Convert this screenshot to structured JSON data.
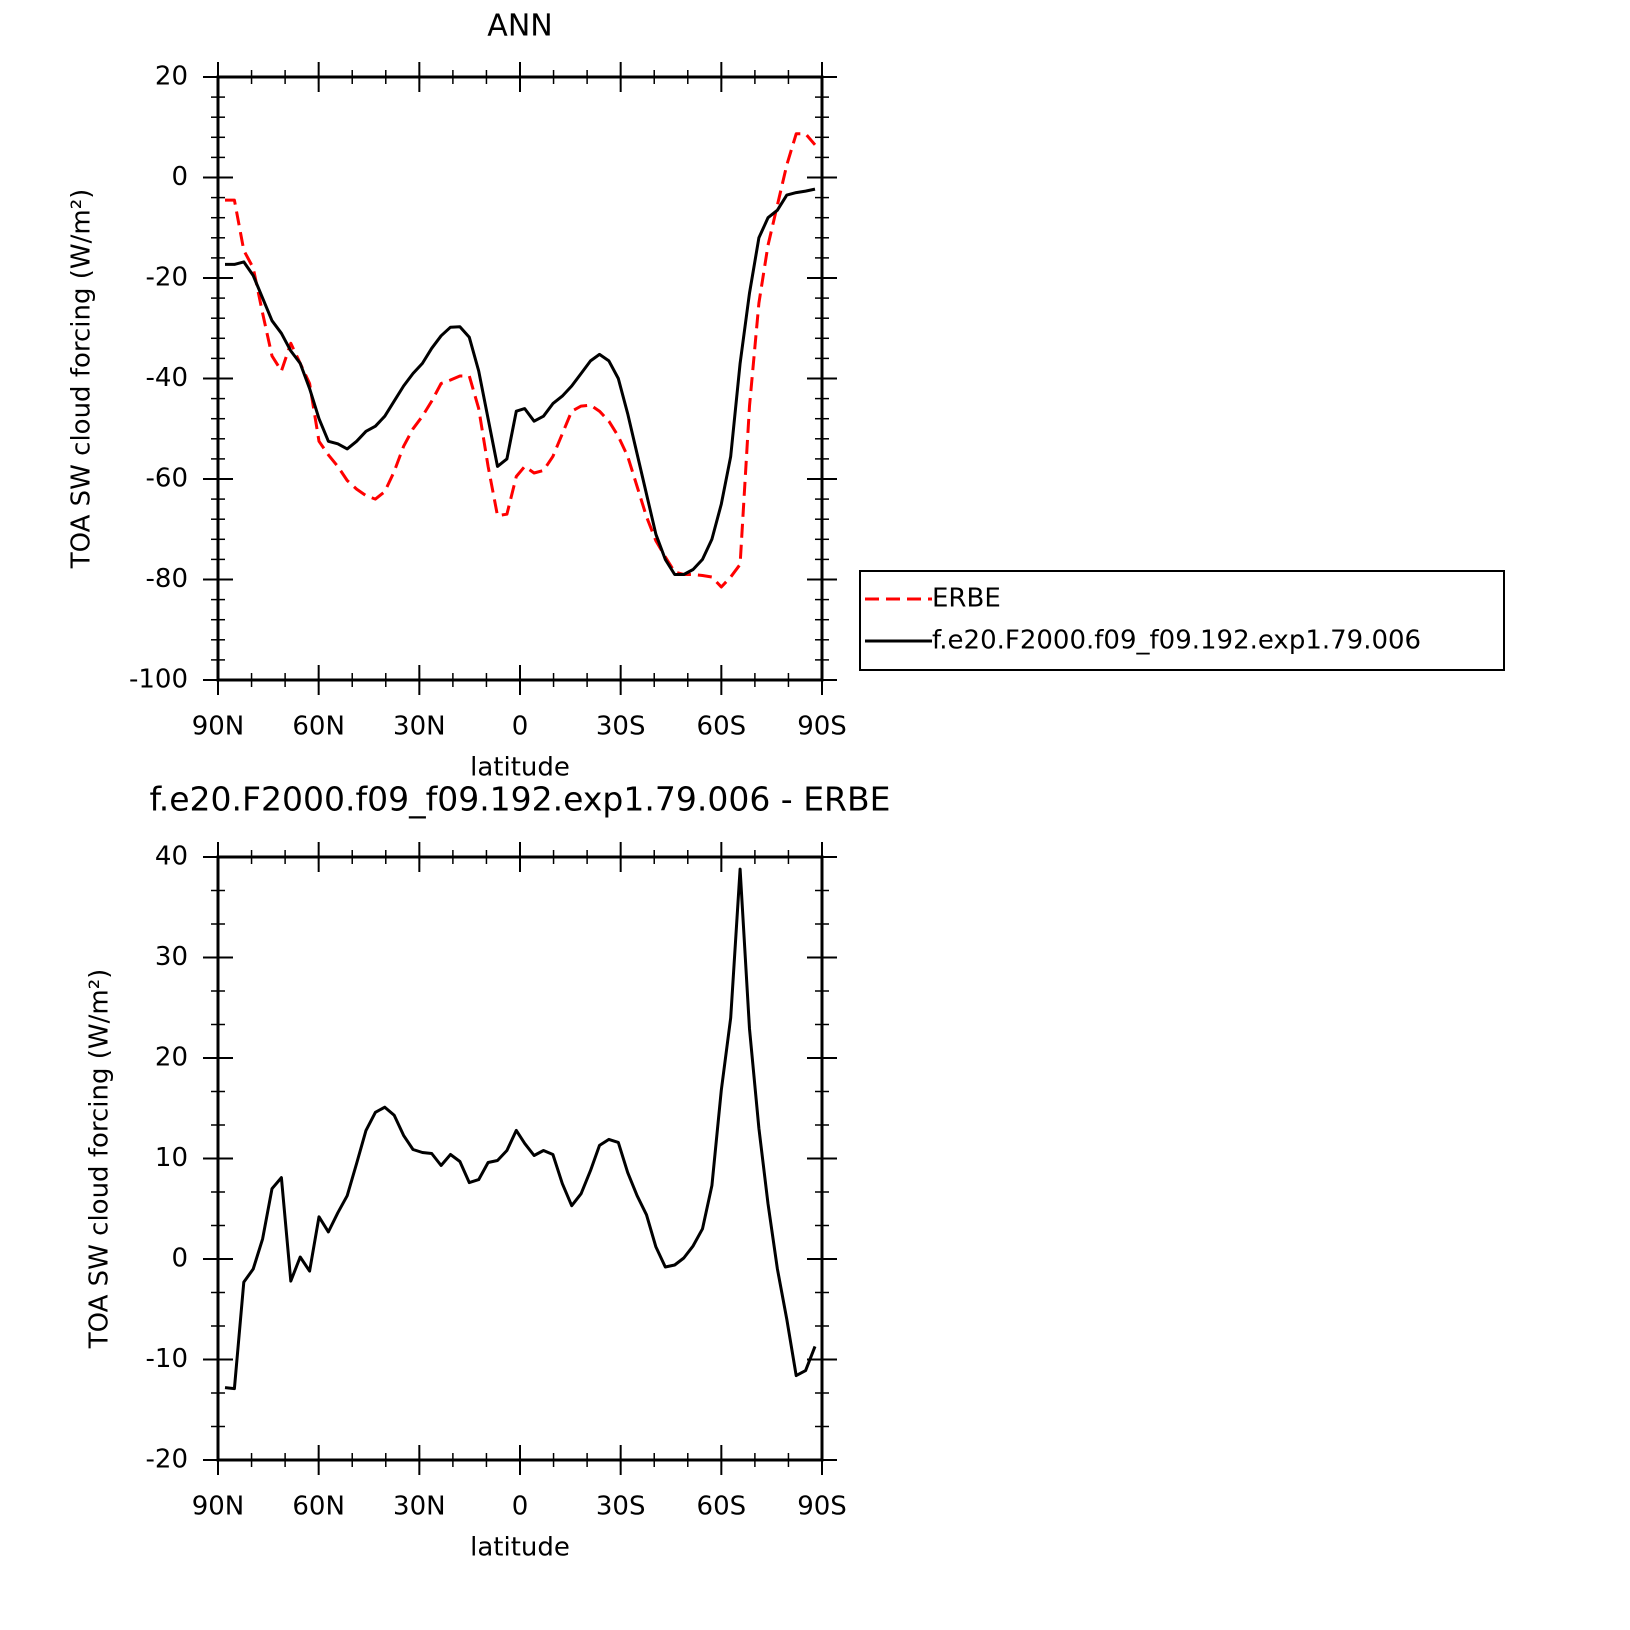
{
  "chart_data": [
    {
      "type": "line",
      "title": "ANN",
      "xlabel": "latitude",
      "ylabel": "TOA SW cloud forcing (W/m²)",
      "x": [
        87.9,
        85.1,
        82.3,
        79.5,
        76.7,
        73.9,
        71.1,
        68.3,
        65.5,
        62.7,
        59.9,
        57.1,
        54.3,
        51.5,
        48.7,
        45.9,
        43.1,
        40.3,
        37.5,
        34.7,
        31.9,
        29.1,
        26.3,
        23.5,
        20.7,
        17.9,
        15.1,
        12.3,
        9.5,
        6.7,
        3.9,
        1.1,
        -1.4,
        -4.2,
        -7.0,
        -9.8,
        -12.6,
        -15.4,
        -18.2,
        -21.0,
        -23.7,
        -26.5,
        -29.3,
        -32.1,
        -34.9,
        -37.7,
        -40.5,
        -43.3,
        -46.1,
        -48.8,
        -51.6,
        -54.4,
        -57.2,
        -60.0,
        -62.8,
        -65.6,
        -68.4,
        -71.2,
        -73.9,
        -76.7,
        -79.5,
        -82.3,
        -85.1,
        -87.9
      ],
      "series": [
        {
          "name": "ERBE",
          "color": "#ff0000",
          "dashed": true,
          "values": [
            -4.5,
            -4.5,
            -14.5,
            -18,
            -27,
            -35.5,
            -38.5,
            -33,
            -37,
            -41,
            -52.5,
            -55.2,
            -57.5,
            -60.3,
            -62,
            -63.3,
            -64,
            -62.5,
            -58.5,
            -53.5,
            -50,
            -47.5,
            -44.5,
            -41,
            -40.3,
            -39.5,
            -39.5,
            -46,
            -57.5,
            -67.3,
            -67,
            -59.5,
            -57.5,
            -58.8,
            -58.3,
            -55.5,
            -51,
            -46.5,
            -45.5,
            -45.3,
            -46.5,
            -48.5,
            -51.5,
            -55.5,
            -61.5,
            -67.5,
            -72.3,
            -75.5,
            -78.5,
            -79,
            -79,
            -79.2,
            -79.5,
            -81.5,
            -79.5,
            -77,
            -45.5,
            -25,
            -13.5,
            -5.5,
            2.5,
            8.7,
            8.7,
            6.5
          ]
        },
        {
          "name": "f.e20.F2000.f09_f09.192.exp1.79.006",
          "color": "#000000",
          "dashed": false,
          "values": [
            -17.3,
            -17.3,
            -16.8,
            -19.5,
            -24,
            -28.5,
            -31,
            -34.5,
            -37,
            -42,
            -48,
            -52.5,
            -53,
            -54,
            -52.5,
            -50.5,
            -49.5,
            -47.5,
            -44.5,
            -41.5,
            -39,
            -37,
            -34,
            -31.5,
            -29.8,
            -29.7,
            -31.8,
            -38.5,
            -48,
            -57.5,
            -56,
            -46.5,
            -46,
            -48.5,
            -47.5,
            -45,
            -43.5,
            -41.5,
            -39,
            -36.5,
            -35.2,
            -36.5,
            -40,
            -47,
            -55,
            -63,
            -71,
            -76,
            -79,
            -79,
            -78,
            -76,
            -72,
            -65,
            -55.5,
            -37,
            -23,
            -12,
            -8,
            -6.5,
            -3.5,
            -3,
            -2.7,
            -2.3
          ]
        }
      ],
      "xlim": [
        90,
        -90
      ],
      "xticks": [
        {
          "value": 90,
          "label": "90N"
        },
        {
          "value": 60,
          "label": "60N"
        },
        {
          "value": 30,
          "label": "30N"
        },
        0,
        {
          "value": -30,
          "label": "30S"
        },
        {
          "value": -60,
          "label": "60S"
        },
        {
          "value": -90,
          "label": "90S"
        }
      ],
      "ylim": [
        -100,
        20
      ],
      "yticks": [
        -100,
        -80,
        -60,
        -40,
        -20,
        0,
        20
      ],
      "xminor": 10,
      "yminor": 4,
      "legend": "right"
    },
    {
      "type": "line",
      "title": "f.e20.F2000.f09_f09.192.exp1.79.006 - ERBE",
      "xlabel": "latitude",
      "ylabel": "TOA SW cloud forcing (W/m²)",
      "x": [
        87.9,
        85.1,
        82.3,
        79.5,
        76.7,
        73.9,
        71.1,
        68.3,
        65.5,
        62.7,
        59.9,
        57.1,
        54.3,
        51.5,
        48.7,
        45.9,
        43.1,
        40.3,
        37.5,
        34.7,
        31.9,
        29.1,
        26.3,
        23.5,
        20.7,
        17.9,
        15.1,
        12.3,
        9.5,
        6.7,
        3.9,
        1.1,
        -1.4,
        -4.2,
        -7.0,
        -9.8,
        -12.6,
        -15.4,
        -18.2,
        -21.0,
        -23.7,
        -26.5,
        -29.3,
        -32.1,
        -34.9,
        -37.7,
        -40.5,
        -43.3,
        -46.1,
        -48.8,
        -51.6,
        -54.4,
        -57.2,
        -60.0,
        -62.8,
        -65.6,
        -68.4,
        -71.2,
        -73.9,
        -76.7,
        -79.5,
        -82.3,
        -85.1,
        -87.9
      ],
      "series": [
        {
          "color": "#000000",
          "dashed": false,
          "values": [
            -12.8,
            -12.9,
            -2.3,
            -1,
            2,
            7,
            8.1,
            -2.2,
            0.2,
            -1.2,
            4.2,
            2.7,
            4.6,
            6.3,
            9.5,
            12.8,
            14.6,
            15.1,
            14.3,
            12.3,
            10.9,
            10.6,
            10.5,
            9.3,
            10.4,
            9.7,
            7.6,
            7.9,
            9.6,
            9.8,
            10.8,
            12.8,
            11.5,
            10.3,
            10.8,
            10.4,
            7.5,
            5.3,
            6.5,
            8.8,
            11.3,
            11.9,
            11.6,
            8.6,
            6.3,
            4.4,
            1.2,
            -0.8,
            -0.6,
            0.1,
            1.3,
            3,
            7.3,
            16.8,
            24,
            38.8,
            22.9,
            13,
            5.5,
            -1,
            -6,
            -11.6,
            -11.1,
            -8.7
          ]
        }
      ],
      "xlim": [
        90,
        -90
      ],
      "xticks": [
        {
          "value": 90,
          "label": "90N"
        },
        {
          "value": 60,
          "label": "60N"
        },
        {
          "value": 30,
          "label": "30N"
        },
        0,
        {
          "value": -30,
          "label": "30S"
        },
        {
          "value": -60,
          "label": "60S"
        },
        {
          "value": -90,
          "label": "90S"
        }
      ],
      "ylim": [
        -20,
        40
      ],
      "yticks": [
        -20,
        -10,
        0,
        10,
        20,
        30,
        40
      ],
      "xminor": 10,
      "yminor": 2
    }
  ]
}
